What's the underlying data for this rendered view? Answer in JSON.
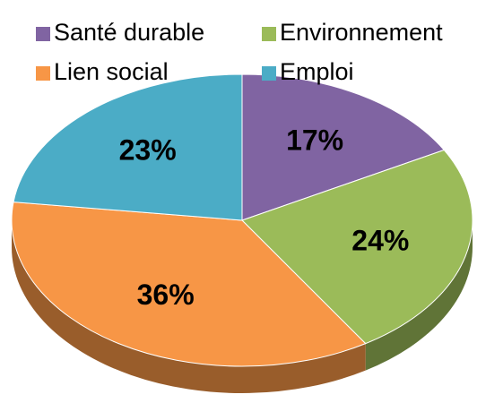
{
  "chart_data": {
    "type": "pie",
    "categories": [
      "Santé durable",
      "Environnement",
      "Lien social",
      "Emploi"
    ],
    "values": [
      17,
      24,
      36,
      23
    ],
    "value_labels": [
      "17%",
      "24%",
      "36%",
      "23%"
    ],
    "colors": [
      "#8064a2",
      "#9bbb59",
      "#f79646",
      "#4bacc6"
    ],
    "legend": "top"
  }
}
